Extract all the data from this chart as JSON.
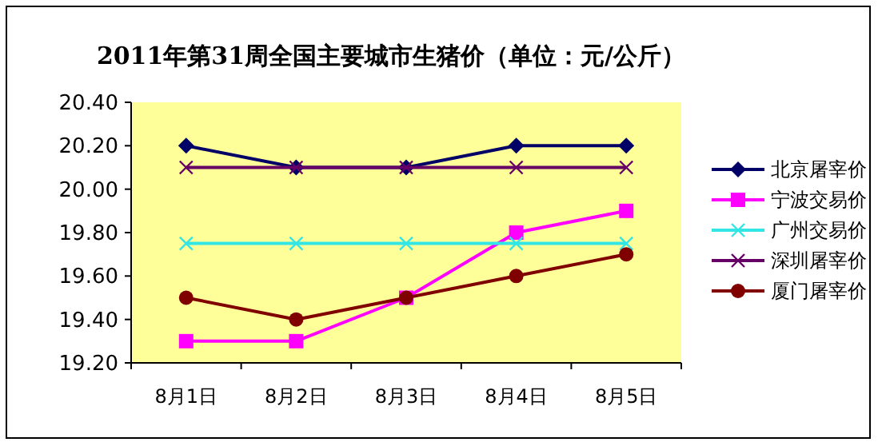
{
  "chart_data": {
    "type": "line",
    "title": "2011年第31周全国主要城市生猪价（单位：元/公斤）",
    "categories": [
      "8月1日",
      "8月2日",
      "8月3日",
      "8月4日",
      "8月5日"
    ],
    "ylim": [
      19.2,
      20.4
    ],
    "yticks": [
      {
        "value": 19.2,
        "label": "19.20"
      },
      {
        "value": 19.4,
        "label": "19.40"
      },
      {
        "value": 19.6,
        "label": "19.60"
      },
      {
        "value": 19.8,
        "label": "19.80"
      },
      {
        "value": 20.0,
        "label": "20.00"
      },
      {
        "value": 20.2,
        "label": "20.20"
      },
      {
        "value": 20.4,
        "label": "20.40"
      }
    ],
    "grid": false,
    "legend": "right",
    "series": [
      {
        "name": "北京屠宰价",
        "color": "#000066",
        "marker": "diamond",
        "values": [
          20.2,
          20.1,
          20.1,
          20.2,
          20.2
        ]
      },
      {
        "name": "宁波交易价",
        "color": "#ff00ff",
        "marker": "square",
        "values": [
          19.3,
          19.3,
          19.5,
          19.8,
          19.9
        ]
      },
      {
        "name": "广州交易价",
        "color": "#33e6e6",
        "marker": "cross",
        "values": [
          19.75,
          19.75,
          19.75,
          19.75,
          19.75
        ]
      },
      {
        "name": "深圳屠宰价",
        "color": "#660066",
        "marker": "cross",
        "values": [
          20.1,
          20.1,
          20.1,
          20.1,
          20.1
        ]
      },
      {
        "name": "厦门屠宰价",
        "color": "#800000",
        "marker": "circle",
        "values": [
          19.5,
          19.4,
          19.5,
          19.6,
          19.7
        ]
      }
    ]
  }
}
